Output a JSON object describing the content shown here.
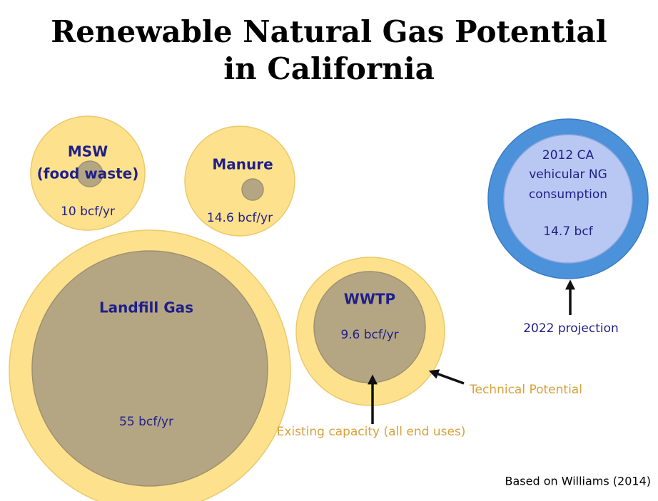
{
  "title_lines": [
    "Renewable Natural Gas Potential",
    "in California"
  ],
  "bubbles": [
    {
      "label_lines": [
        "MSW",
        "(food waste)"
      ],
      "amount": "10 bcf/yr"
    },
    {
      "label_lines": [
        "Manure"
      ],
      "amount": "14.6 bcf/yr"
    },
    {
      "label_lines": [
        "Landfill Gas"
      ],
      "amount": "55 bcf/yr"
    },
    {
      "label_lines": [
        "WWTP"
      ],
      "amount": "9.6 bcf/yr"
    }
  ],
  "consumption": {
    "label_lines": [
      "2012 CA",
      "vehicular NG",
      "consumption"
    ],
    "amount": "14.7 bcf"
  },
  "annotations": {
    "projection": "2022 projection",
    "technical_potential": "Technical Potential",
    "existing_capacity": "Existing capacity (all end uses)",
    "source": "Based on Williams (2014)"
  }
}
